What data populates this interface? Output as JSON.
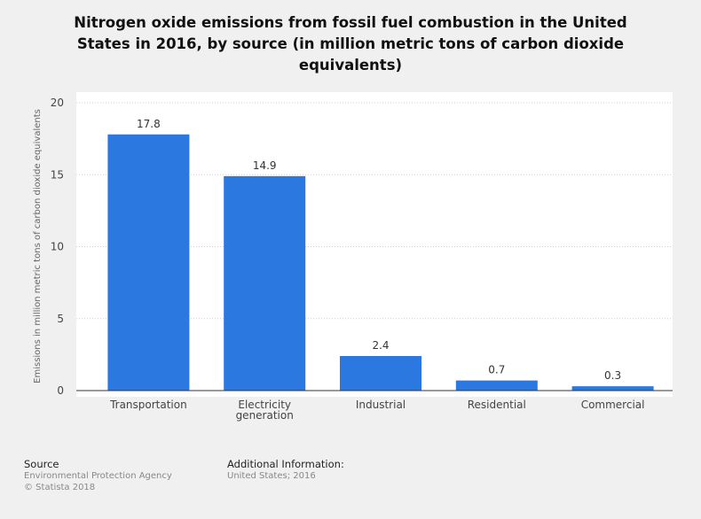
{
  "chart_data": {
    "type": "bar",
    "title": "Nitrogen oxide emissions from fossil fuel combustion in the United States in 2016, by source (in million metric tons of carbon dioxide equivalents)",
    "title_lines": [
      "Nitrogen oxide emissions from fossil fuel combustion in the United",
      "States in 2016, by source (in million metric tons of carbon dioxide",
      "equivalents)"
    ],
    "categories": [
      "Transportation",
      "Electricity generation",
      "Industrial",
      "Residential",
      "Commercial"
    ],
    "category_lines": [
      [
        "Transportation"
      ],
      [
        "Electricity",
        "generation"
      ],
      [
        "Industrial"
      ],
      [
        "Residential"
      ],
      [
        "Commercial"
      ]
    ],
    "values": [
      17.8,
      14.9,
      2.4,
      0.7,
      0.3
    ],
    "value_labels": [
      "17.8",
      "14.9",
      "2.4",
      "0.7",
      "0.3"
    ],
    "xlabel": "",
    "ylabel": "Emissions in million metric tons of carbon dioxide equivalents",
    "ylim": [
      0,
      20
    ],
    "yticks": [
      0,
      5,
      10,
      15,
      20
    ],
    "grid": true,
    "bar_color": "#2a78e0"
  },
  "footer": {
    "source_heading": "Source",
    "source_lines": [
      "Environmental Protection Agency",
      "© Statista 2018"
    ],
    "additional_heading": "Additional Information:",
    "additional_lines": [
      "United States; 2016"
    ]
  }
}
